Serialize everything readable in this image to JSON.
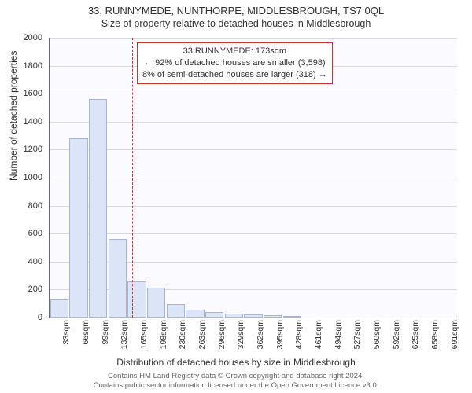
{
  "title_main": "33, RUNNYMEDE, NUNTHORPE, MIDDLESBROUGH, TS7 0QL",
  "title_sub": "Size of property relative to detached houses in Middlesbrough",
  "y_axis_label": "Number of detached properties",
  "x_axis_label": "Distribution of detached houses by size in Middlesbrough",
  "histogram": {
    "type": "histogram",
    "bar_fill": "#dce4f7",
    "bar_border": "#aab4d4",
    "plot_bg": "#fafaff",
    "grid_color": "#d8d8e0",
    "axis_color": "#666666",
    "ylim": [
      0,
      2000
    ],
    "yticks": [
      0,
      200,
      400,
      600,
      800,
      1000,
      1200,
      1400,
      1600,
      1800,
      2000
    ],
    "x_categories": [
      "33sqm",
      "66sqm",
      "99sqm",
      "132sqm",
      "165sqm",
      "198sqm",
      "230sqm",
      "263sqm",
      "296sqm",
      "329sqm",
      "362sqm",
      "395sqm",
      "428sqm",
      "461sqm",
      "494sqm",
      "527sqm",
      "560sqm",
      "592sqm",
      "625sqm",
      "658sqm",
      "691sqm"
    ],
    "values": [
      130,
      1280,
      1560,
      560,
      260,
      215,
      95,
      55,
      40,
      28,
      25,
      15,
      12,
      0,
      0,
      0,
      0,
      0,
      0,
      0,
      0
    ],
    "bar_width_ratio": 0.95
  },
  "marker": {
    "x_value_sqm": 173,
    "x_range_min": 33,
    "x_range_max": 691,
    "line_color": "#cc3333",
    "box_border": "#cc3333",
    "box_bg": "#ffffff",
    "lines": [
      "33 RUNNYMEDE: 173sqm",
      "← 92% of detached houses are smaller (3,598)",
      "8% of semi-detached houses are larger (318) →"
    ]
  },
  "footer_lines": [
    "Contains HM Land Registry data © Crown copyright and database right 2024.",
    "Contains public sector information licensed under the Open Government Licence v3.0."
  ],
  "fonts": {
    "title": 13,
    "subtitle": 12.5,
    "axis_label": 12,
    "tick": 11,
    "xtick": 10.5,
    "infobox": 11,
    "footer": 9.5
  }
}
